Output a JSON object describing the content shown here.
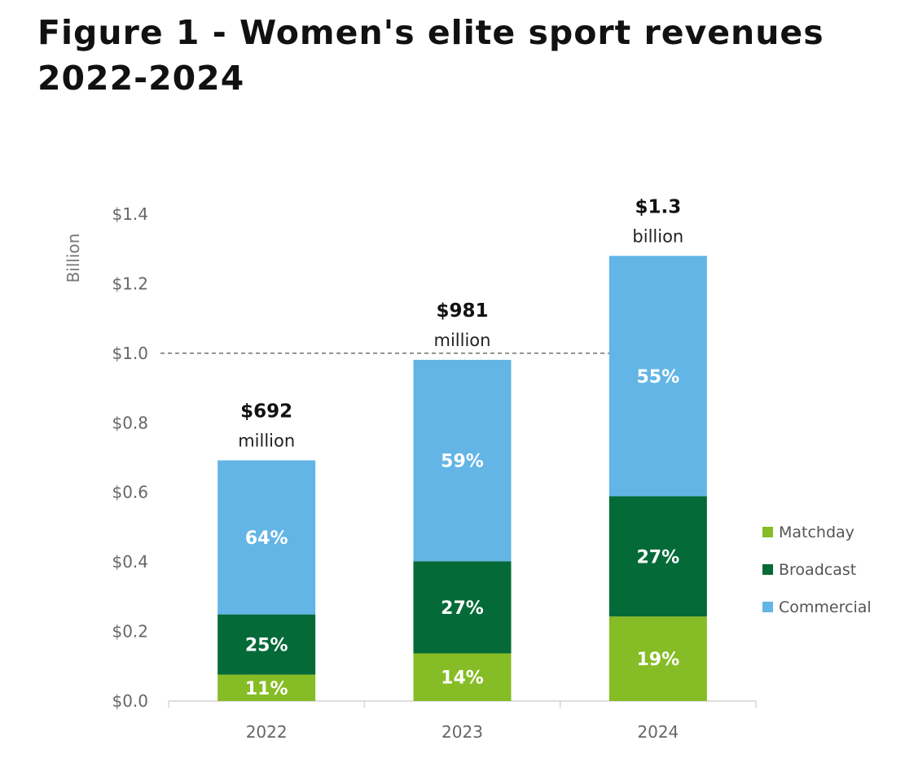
{
  "figure": {
    "title": "Figure 1 - Women's elite sport revenues 2022-2024"
  },
  "chart_data": {
    "type": "bar",
    "stacked": true,
    "title": "",
    "xlabel": "",
    "ylabel": "Billion",
    "ylim": [
      0,
      1.4
    ],
    "yticks": [
      0,
      0.2,
      0.4,
      0.6,
      0.8,
      1.0,
      1.2,
      1.4
    ],
    "ytick_labels": [
      "$0.0",
      "$0.2",
      "$0.4",
      "$0.6",
      "$0.8",
      "$1.0",
      "$1.2",
      "$1.4"
    ],
    "reference_line": {
      "y": 1.0,
      "style": "dashed"
    },
    "categories": [
      "2022",
      "2023",
      "2024"
    ],
    "totals": [
      0.692,
      0.981,
      1.28
    ],
    "total_labels": [
      {
        "value": "$692",
        "unit": "million"
      },
      {
        "value": "$981",
        "unit": "million"
      },
      {
        "value": "$1.3",
        "unit": "billion"
      }
    ],
    "series": [
      {
        "name": "Matchday",
        "color": "#86BC25",
        "values": [
          0.076,
          0.137,
          0.243
        ],
        "labels": [
          "11%",
          "14%",
          "19%"
        ]
      },
      {
        "name": "Broadcast",
        "color": "#046A38",
        "values": [
          0.173,
          0.265,
          0.346
        ],
        "labels": [
          "25%",
          "27%",
          "27%"
        ]
      },
      {
        "name": "Commercial",
        "color": "#62B5E5",
        "values": [
          0.443,
          0.579,
          0.691
        ],
        "labels": [
          "64%",
          "59%",
          "55%"
        ]
      }
    ],
    "legend": {
      "position": "right",
      "order": [
        "Matchday",
        "Broadcast",
        "Commercial"
      ]
    },
    "grid": false
  }
}
